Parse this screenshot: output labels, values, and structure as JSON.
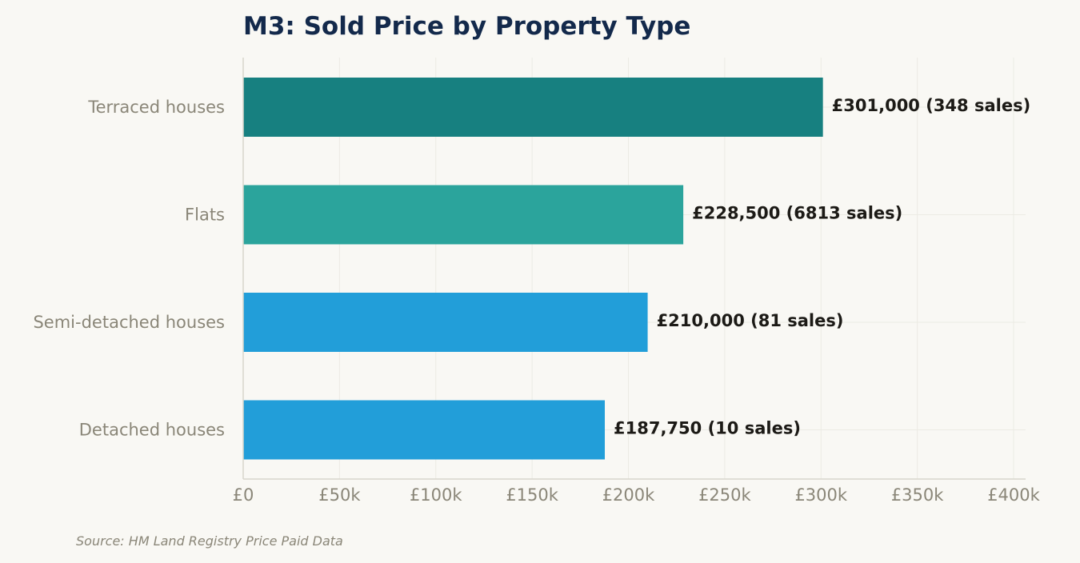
{
  "chart_data": {
    "type": "bar",
    "orientation": "horizontal",
    "title": "M3: Sold Price by Property Type",
    "categories": [
      "Terraced houses",
      "Flats",
      "Semi-detached houses",
      "Detached houses"
    ],
    "values": [
      301000,
      228500,
      210000,
      187750
    ],
    "data_labels": [
      "£301,000  (348 sales)",
      "£228,500  (6813 sales)",
      "£210,000  (81 sales)",
      "£187,750  (10 sales)"
    ],
    "bar_colors": [
      "#178080",
      "#2ba49c",
      "#229ed9",
      "#229ed9"
    ],
    "xlim": [
      0,
      400000
    ],
    "x_ticks": [
      0,
      50000,
      100000,
      150000,
      200000,
      250000,
      300000,
      350000,
      400000
    ],
    "x_tick_labels": [
      "£0",
      "£50k",
      "£100k",
      "£150k",
      "£200k",
      "£250k",
      "£300k",
      "£350k",
      "£400k"
    ],
    "grid": true,
    "source": "Source: HM Land Registry Price Paid Data"
  },
  "colors": {
    "background": "#f9f8f4",
    "title": "#13294b",
    "axis_text": "#8a8678",
    "data_label": "#1c1a16",
    "grid": "#ecebe4",
    "axis_line": "#d8d6cc"
  }
}
